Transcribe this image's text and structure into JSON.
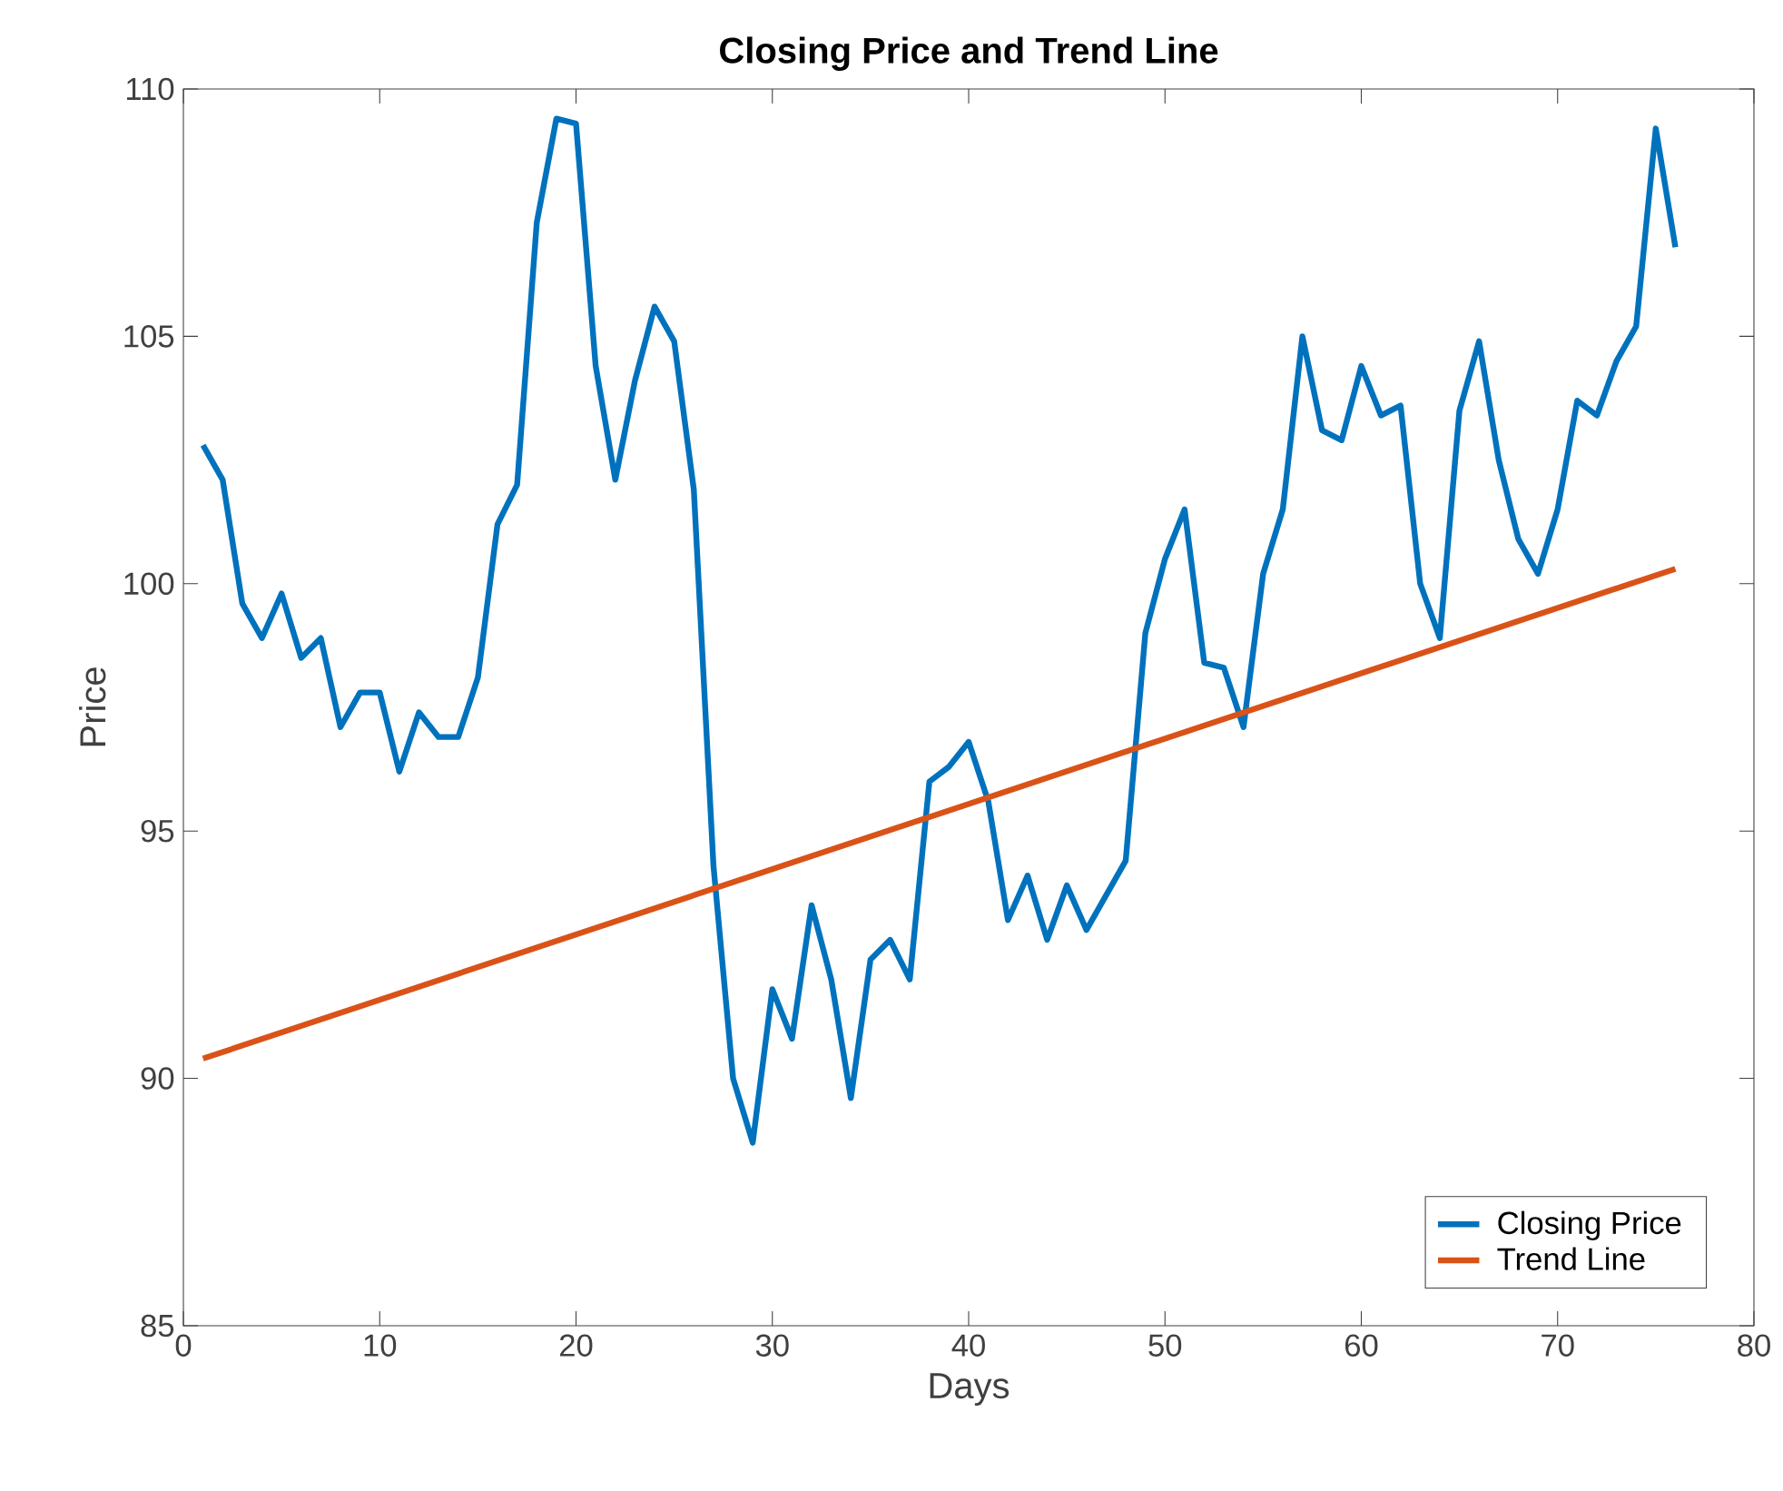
{
  "chart_data": {
    "type": "line",
    "title": "Closing Price and Trend Line",
    "xlabel": "Days",
    "ylabel": "Price",
    "xlim": [
      0,
      80
    ],
    "ylim": [
      85,
      110
    ],
    "xticks": [
      0,
      10,
      20,
      30,
      40,
      50,
      60,
      70,
      80
    ],
    "yticks": [
      85,
      90,
      95,
      100,
      105,
      110
    ],
    "grid": false,
    "legend": "bottom right",
    "series": [
      {
        "name": "Closing Price",
        "color": "#0072bd",
        "x": [
          1,
          2,
          3,
          4,
          5,
          6,
          7,
          8,
          9,
          10,
          11,
          12,
          13,
          14,
          15,
          16,
          17,
          18,
          19,
          20,
          21,
          22,
          23,
          24,
          25,
          26,
          27,
          28,
          29,
          30,
          31,
          32,
          33,
          34,
          35,
          36,
          37,
          38,
          39,
          40,
          41,
          42,
          43,
          44,
          45,
          46,
          47,
          48,
          49,
          50,
          51,
          52,
          53,
          54,
          55,
          56,
          57,
          58,
          59,
          60,
          61,
          62,
          63,
          64,
          65,
          66,
          67,
          68,
          69,
          70,
          71,
          72,
          73,
          74,
          75,
          76
        ],
        "values": [
          102.8,
          102.1,
          99.6,
          98.9,
          99.8,
          98.5,
          98.9,
          97.1,
          97.8,
          97.8,
          96.2,
          97.4,
          96.9,
          96.9,
          98.1,
          101.2,
          102.0,
          107.3,
          109.4,
          109.3,
          104.4,
          102.1,
          104.1,
          105.6,
          104.9,
          101.9,
          94.3,
          90.0,
          88.7,
          91.8,
          90.8,
          93.5,
          92.0,
          89.6,
          92.4,
          92.8,
          92.0,
          96.0,
          96.3,
          96.8,
          95.6,
          93.2,
          94.1,
          92.8,
          93.9,
          93.0,
          93.7,
          94.4,
          99.0,
          100.5,
          101.5,
          98.4,
          98.3,
          97.1,
          100.2,
          101.5,
          105.0,
          103.1,
          102.9,
          104.4,
          103.4,
          103.6,
          100.0,
          98.9,
          103.5,
          104.9,
          102.5,
          100.9,
          100.2,
          101.5,
          103.7,
          103.4,
          104.5,
          105.2,
          109.2,
          106.8
        ]
      },
      {
        "name": "Trend Line",
        "color": "#d95319",
        "x": [
          1,
          76
        ],
        "values": [
          90.4,
          100.3
        ]
      }
    ]
  }
}
